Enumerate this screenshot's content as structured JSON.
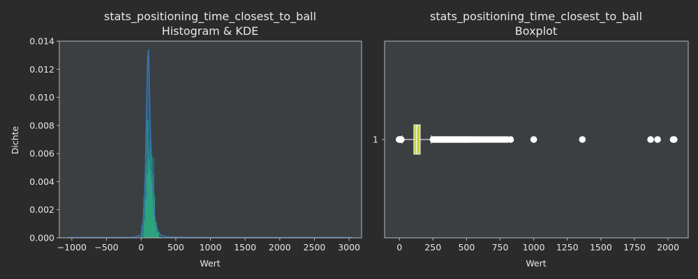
{
  "colors": {
    "figure_bg": "#2b2b2b",
    "axes_bg": "#3b3f42",
    "spine": "#b8b8b8",
    "text": "#e8e8e8",
    "hist_blue": "#2b5c8a",
    "hist_teal": "#1f9a8a",
    "hist_green": "#35b779",
    "kde_line": "#3a75b0",
    "box_fill": "#c2d33b",
    "outlier": "#ffffff"
  },
  "chart_data": [
    {
      "type": "histogram-kde",
      "title": "stats_positioning_time_closest_to_ball",
      "subtitle": "Histogram & KDE",
      "xlabel": "Wert",
      "ylabel": "Dichte",
      "xlim": [
        -1180,
        3180
      ],
      "ylim": [
        0,
        0.014
      ],
      "xticks": [
        -1000,
        -500,
        0,
        500,
        1000,
        1500,
        2000,
        2500,
        3000
      ],
      "xtick_labels": [
        "−1000",
        "−500",
        "0",
        "500",
        "1000",
        "1500",
        "2000",
        "2500",
        "3000"
      ],
      "yticks": [
        0,
        0.002,
        0.004,
        0.006,
        0.008,
        0.01,
        0.012,
        0.014
      ],
      "ytick_labels": [
        "0.000",
        "0.002",
        "0.004",
        "0.006",
        "0.008",
        "0.010",
        "0.012",
        "0.014"
      ],
      "grid": false,
      "hist_series": [
        {
          "bin_edges": [
            -30,
            0,
            30,
            60,
            80,
            90,
            100,
            110,
            120,
            130,
            140,
            150,
            160,
            170,
            180,
            190,
            200,
            220,
            250,
            300,
            400
          ],
          "density": [
            0.0001,
            0.0009,
            0.003,
            0.0068,
            0.0102,
            0.0129,
            0.0134,
            0.0112,
            0.0089,
            0.0068,
            0.0051,
            0.0035,
            0.0024,
            0.0016,
            0.001,
            0.0006,
            0.0004,
            0.0002,
            0.0001,
            3e-05
          ]
        },
        {
          "bin_edges": [
            0,
            20,
            40,
            60,
            80,
            100,
            110,
            120,
            130,
            140,
            150,
            160,
            170,
            180,
            190,
            200,
            210,
            230,
            260,
            300
          ],
          "density": [
            0.0005,
            0.0009,
            0.0026,
            0.0052,
            0.0084,
            0.0084,
            0.0062,
            0.0071,
            0.0066,
            0.0058,
            0.0059,
            0.0057,
            0.0045,
            0.0057,
            0.0031,
            0.0012,
            0.0008,
            0.0004,
            0.0001
          ]
        },
        {
          "bin_edges": [
            40,
            60,
            80,
            100,
            120,
            140,
            160,
            180,
            200,
            230,
            260
          ],
          "density": [
            0.0012,
            0.0028,
            0.0045,
            0.0056,
            0.0048,
            0.0042,
            0.0036,
            0.0028,
            0.0011,
            0.0004
          ]
        }
      ],
      "kde": {
        "x": [
          -1050,
          -600,
          -300,
          -100,
          0,
          30,
          60,
          80,
          95,
          105,
          115,
          130,
          150,
          170,
          190,
          210,
          240,
          280,
          350,
          500,
          800,
          1200,
          1800,
          2400,
          3050
        ],
        "y": [
          3e-05,
          3e-05,
          3e-05,
          4e-05,
          0.0002,
          0.0012,
          0.0045,
          0.0095,
          0.0128,
          0.0134,
          0.0118,
          0.0082,
          0.0052,
          0.0032,
          0.0018,
          0.001,
          0.0005,
          0.0002,
          8e-05,
          4e-05,
          3e-05,
          3e-05,
          3e-05,
          3e-05,
          3e-05
        ]
      }
    },
    {
      "type": "boxplot",
      "title": "stats_positioning_time_closest_to_ball",
      "subtitle": "Boxplot",
      "xlabel": "Wert",
      "xlim": [
        -110,
        2150
      ],
      "xticks": [
        0,
        250,
        500,
        750,
        1000,
        1250,
        1500,
        1750,
        2000
      ],
      "xtick_labels": [
        "0",
        "250",
        "500",
        "750",
        "1000",
        "1250",
        "1500",
        "1750",
        "2000"
      ],
      "yticks": [
        1
      ],
      "ytick_labels": [
        "1"
      ],
      "grid": false,
      "box": {
        "whisker_low": 20,
        "q1": 108,
        "median": 128,
        "q3": 155,
        "whisker_high": 237
      },
      "outliers": [
        -2,
        2,
        6,
        10,
        14,
        250,
        260,
        270,
        280,
        290,
        300,
        310,
        320,
        330,
        340,
        350,
        360,
        370,
        380,
        390,
        400,
        410,
        420,
        430,
        440,
        450,
        460,
        470,
        480,
        490,
        500,
        510,
        520,
        535,
        550,
        565,
        580,
        600,
        620,
        640,
        660,
        680,
        700,
        720,
        740,
        760,
        780,
        800,
        828,
        1000,
        1362,
        1870,
        1922,
        2038,
        2045
      ]
    }
  ]
}
